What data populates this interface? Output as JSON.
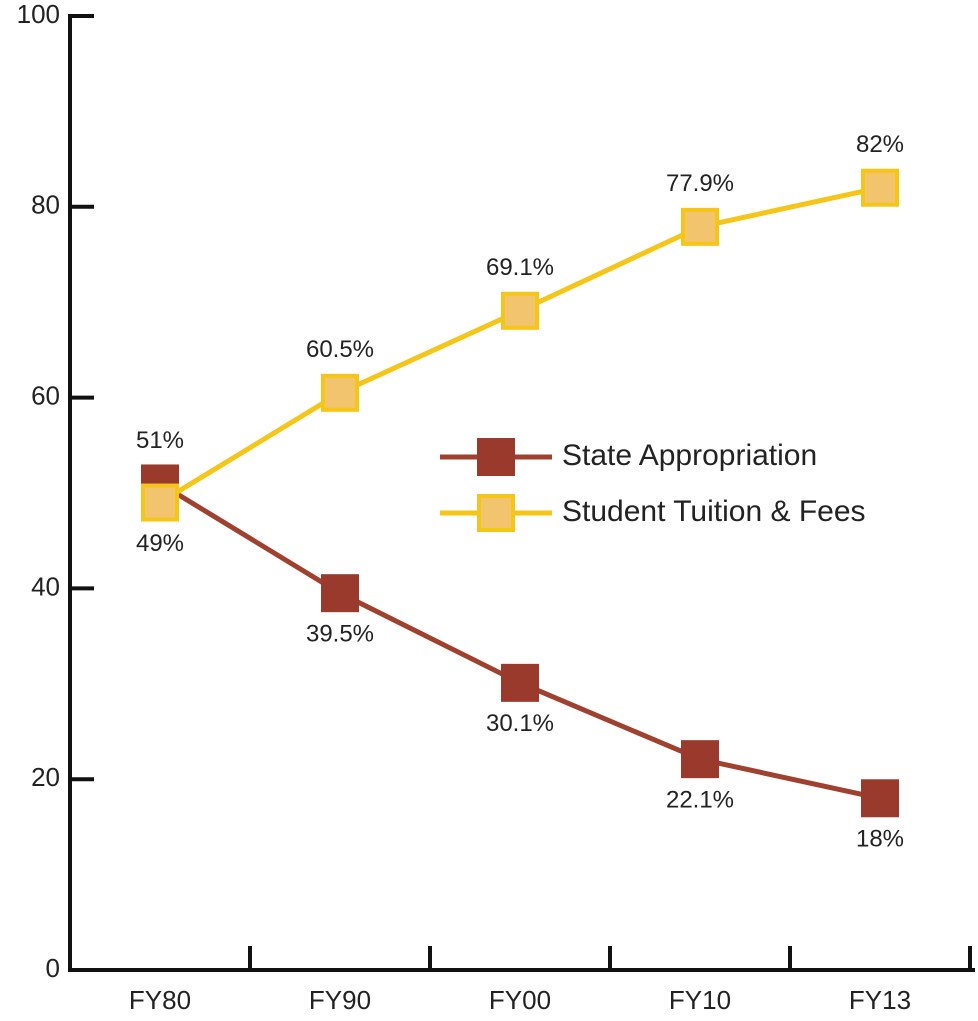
{
  "chart_data": {
    "type": "line",
    "categories": [
      "FY80",
      "FY90",
      "FY00",
      "FY10",
      "FY13"
    ],
    "series": [
      {
        "name": "State Appropriation",
        "color": "#a0412f",
        "marker_color": "#9a3a2d",
        "values": [
          51,
          39.5,
          30.1,
          22.1,
          18
        ],
        "value_labels": [
          "51%",
          "39.5%",
          "30.1%",
          "22.1%",
          "18%"
        ]
      },
      {
        "name": "Student Tuition & Fees",
        "color": "#f5c518",
        "marker_color": "#f2c46e",
        "values": [
          49,
          60.5,
          69.1,
          77.9,
          82
        ],
        "value_labels": [
          "49%",
          "60.5%",
          "69.1%",
          "77.9%",
          "82%"
        ]
      }
    ],
    "ylim": [
      0,
      100
    ],
    "yticks": [
      0,
      20,
      40,
      60,
      80,
      100
    ],
    "grid": false,
    "legend": "center"
  }
}
